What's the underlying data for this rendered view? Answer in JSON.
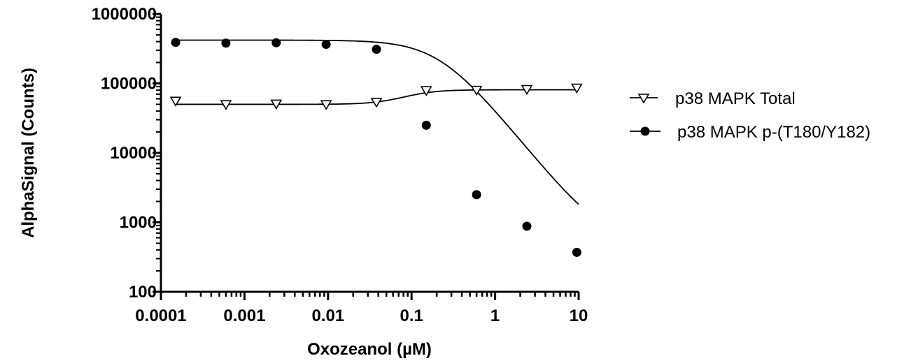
{
  "chart_data": {
    "type": "scatter",
    "xlabel": "Oxozeanol (µM)",
    "ylabel": "AlphaSignal (Counts)",
    "x_scale": "log",
    "y_scale": "log",
    "xlim": [
      0.0001,
      10
    ],
    "ylim": [
      100,
      1000000
    ],
    "x_ticks": [
      {
        "value": 0.0001,
        "label": "0.0001"
      },
      {
        "value": 0.001,
        "label": "0.001"
      },
      {
        "value": 0.01,
        "label": "0.01"
      },
      {
        "value": 0.1,
        "label": "0.1"
      },
      {
        "value": 1,
        "label": "1"
      },
      {
        "value": 10,
        "label": "10"
      }
    ],
    "y_ticks": [
      {
        "value": 100,
        "label": "100"
      },
      {
        "value": 1000,
        "label": "1000"
      },
      {
        "value": 10000,
        "label": "10000"
      },
      {
        "value": 100000,
        "label": "100000"
      },
      {
        "value": 1000000,
        "label": "1000000"
      }
    ],
    "legend_position": "right",
    "series": [
      {
        "name": "p38 MAPK Total",
        "marker": "open-triangle-down",
        "color": "#000000",
        "x": [
          0.00015,
          0.0006,
          0.0024,
          0.0095,
          0.038,
          0.15,
          0.6,
          2.4,
          9.5
        ],
        "y": [
          55000,
          49000,
          50000,
          49000,
          53000,
          78000,
          79000,
          81000,
          85000
        ],
        "fit": {
          "bottom": 50000,
          "top": 81000,
          "ec50": 0.09,
          "hill": 2.2
        }
      },
      {
        "name": "p38 MAPK p-(T180/Y182)",
        "marker": "filled-circle",
        "color": "#000000",
        "x": [
          0.00015,
          0.0006,
          0.0024,
          0.0095,
          0.038,
          0.15,
          0.6,
          2.4,
          9.5
        ],
        "y": [
          390000,
          380000,
          385000,
          365000,
          310000,
          25000,
          2500,
          880,
          370
        ],
        "fit": {
          "top": 420000,
          "bottom": 450,
          "ec50": 0.22,
          "hill": -1.5
        }
      }
    ]
  }
}
